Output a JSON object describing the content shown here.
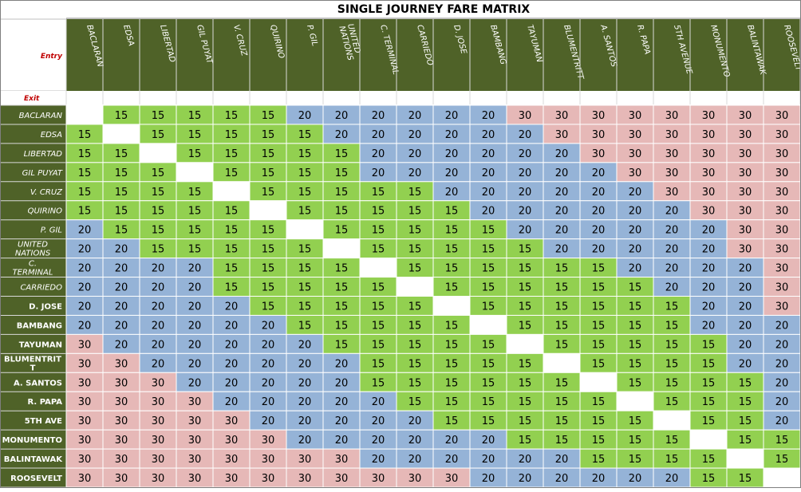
{
  "chart_data": {
    "type": "table",
    "title": "SINGLE JOURNEY FARE MATRIX",
    "entry_label": "Entry",
    "exit_label": "Exit",
    "columns": [
      "BACLARAN",
      "EDSA",
      "LIBERTAD",
      "GIL PUYAT",
      "V. CRUZ",
      "QUIRINO",
      "P. GIL",
      "UNITED NATIONS",
      "C. TERMINAL",
      "CARRIEDO",
      "D. JOSE",
      "BAMBANG",
      "TAYUMAN",
      "BLUMENTRITT",
      "A. SANTOS",
      "R. PAPA",
      "5TH AVENUE",
      "MONUMENTO",
      "BALINTAWAK",
      "ROOSEVELT"
    ],
    "rows": [
      "BACLARAN",
      "EDSA",
      "LIBERTAD",
      "GIL PUYAT",
      "V. CRUZ",
      "QUIRINO",
      "P. GIL",
      "UNITED NATIONS",
      "C. TERMINAL",
      "CARRIEDO",
      "D. JOSE",
      "BAMBANG",
      "TAYUMAN",
      "BLUMENTRITT",
      "A. SANTOS",
      "R. PAPA",
      "5TH AVE",
      "MONUMENTO",
      "BALINTAWAK",
      "ROOSEVELT"
    ],
    "values": [
      [
        null,
        15,
        15,
        15,
        15,
        15,
        20,
        20,
        20,
        20,
        20,
        20,
        30,
        30,
        30,
        30,
        30,
        30,
        30,
        30
      ],
      [
        15,
        null,
        15,
        15,
        15,
        15,
        15,
        20,
        20,
        20,
        20,
        20,
        20,
        30,
        30,
        30,
        30,
        30,
        30,
        30
      ],
      [
        15,
        15,
        null,
        15,
        15,
        15,
        15,
        15,
        20,
        20,
        20,
        20,
        20,
        20,
        30,
        30,
        30,
        30,
        30,
        30
      ],
      [
        15,
        15,
        15,
        null,
        15,
        15,
        15,
        15,
        20,
        20,
        20,
        20,
        20,
        20,
        20,
        30,
        30,
        30,
        30,
        30
      ],
      [
        15,
        15,
        15,
        15,
        null,
        15,
        15,
        15,
        15,
        15,
        20,
        20,
        20,
        20,
        20,
        20,
        30,
        30,
        30,
        30
      ],
      [
        15,
        15,
        15,
        15,
        15,
        null,
        15,
        15,
        15,
        15,
        15,
        20,
        20,
        20,
        20,
        20,
        20,
        30,
        30,
        30
      ],
      [
        20,
        15,
        15,
        15,
        15,
        15,
        null,
        15,
        15,
        15,
        15,
        15,
        20,
        20,
        20,
        20,
        20,
        20,
        30,
        30
      ],
      [
        20,
        20,
        15,
        15,
        15,
        15,
        15,
        null,
        15,
        15,
        15,
        15,
        15,
        20,
        20,
        20,
        20,
        20,
        30,
        30
      ],
      [
        20,
        20,
        20,
        20,
        15,
        15,
        15,
        15,
        null,
        15,
        15,
        15,
        15,
        15,
        15,
        20,
        20,
        20,
        20,
        30
      ],
      [
        20,
        20,
        20,
        20,
        15,
        15,
        15,
        15,
        15,
        null,
        15,
        15,
        15,
        15,
        15,
        15,
        20,
        20,
        20,
        30
      ],
      [
        20,
        20,
        20,
        20,
        20,
        15,
        15,
        15,
        15,
        15,
        null,
        15,
        15,
        15,
        15,
        15,
        15,
        20,
        20,
        30
      ],
      [
        20,
        20,
        20,
        20,
        20,
        20,
        15,
        15,
        15,
        15,
        15,
        null,
        15,
        15,
        15,
        15,
        15,
        20,
        20,
        20
      ],
      [
        30,
        20,
        20,
        20,
        20,
        20,
        20,
        15,
        15,
        15,
        15,
        15,
        null,
        15,
        15,
        15,
        15,
        15,
        20,
        20
      ],
      [
        30,
        30,
        20,
        20,
        20,
        20,
        20,
        20,
        15,
        15,
        15,
        15,
        15,
        null,
        15,
        15,
        15,
        15,
        20,
        20
      ],
      [
        30,
        30,
        30,
        20,
        20,
        20,
        20,
        20,
        15,
        15,
        15,
        15,
        15,
        15,
        null,
        15,
        15,
        15,
        15,
        20
      ],
      [
        30,
        30,
        30,
        30,
        20,
        20,
        20,
        20,
        20,
        15,
        15,
        15,
        15,
        15,
        15,
        null,
        15,
        15,
        15,
        20
      ],
      [
        30,
        30,
        30,
        30,
        30,
        20,
        20,
        20,
        20,
        20,
        15,
        15,
        15,
        15,
        15,
        15,
        null,
        15,
        15,
        20
      ],
      [
        30,
        30,
        30,
        30,
        30,
        30,
        20,
        20,
        20,
        20,
        20,
        20,
        15,
        15,
        15,
        15,
        15,
        null,
        15,
        15
      ],
      [
        30,
        30,
        30,
        30,
        30,
        30,
        30,
        30,
        20,
        20,
        20,
        20,
        20,
        20,
        15,
        15,
        15,
        15,
        null,
        15
      ],
      [
        30,
        30,
        30,
        30,
        30,
        30,
        30,
        30,
        30,
        30,
        30,
        20,
        20,
        20,
        20,
        20,
        20,
        15,
        15,
        null
      ]
    ],
    "fare_colors": {
      "15": "#92d050",
      "20": "#95b3d7",
      "30": "#e6b8b7"
    },
    "header_color": "#4f6228",
    "header_text_color": "#ffffff",
    "label_color": "#c00000"
  }
}
